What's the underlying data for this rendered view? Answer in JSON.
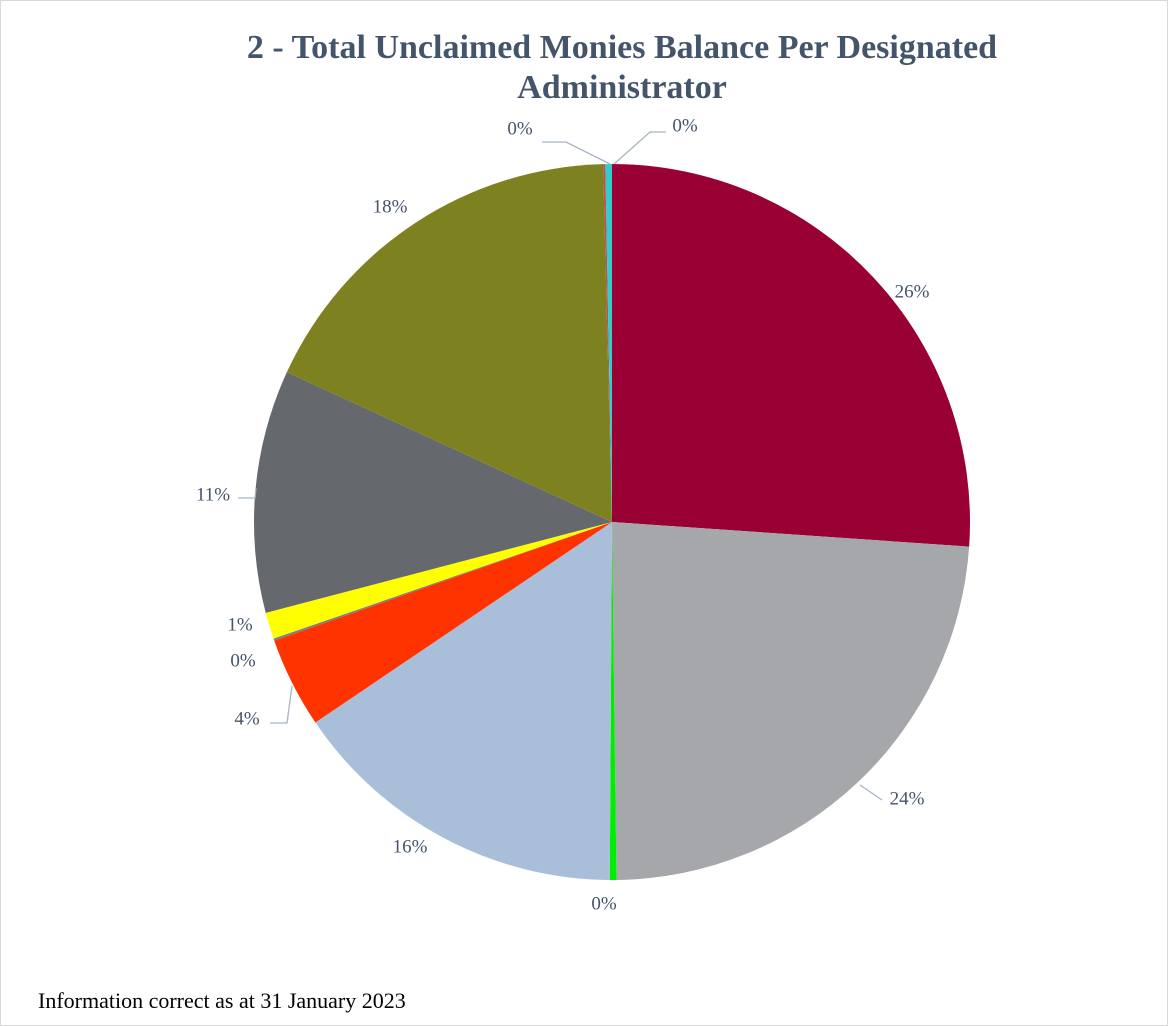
{
  "chart_data": {
    "type": "pie",
    "title": "2 - Total Unclaimed Monies Balance Per Designated Administrator",
    "values": [
      26.2,
      23.8,
      0.3,
      15.5,
      4.1,
      0.1,
      1.2,
      11.0,
      17.8,
      0.1,
      0.3
    ],
    "value_labels": [
      "26%",
      "24%",
      "0%",
      "16%",
      "4%",
      "0%",
      "1%",
      "11%",
      "18%",
      "0%",
      "0%"
    ],
    "colors": [
      "#990033",
      "#a6a7aa",
      "#00ee00",
      "#a9bed9",
      "#ff3300",
      "#7f7f7f",
      "#ffff00",
      "#65686d",
      "#7e8120",
      "#c0504d",
      "#33cccc"
    ],
    "footnote": "Information correct as at 31 January 2023"
  }
}
